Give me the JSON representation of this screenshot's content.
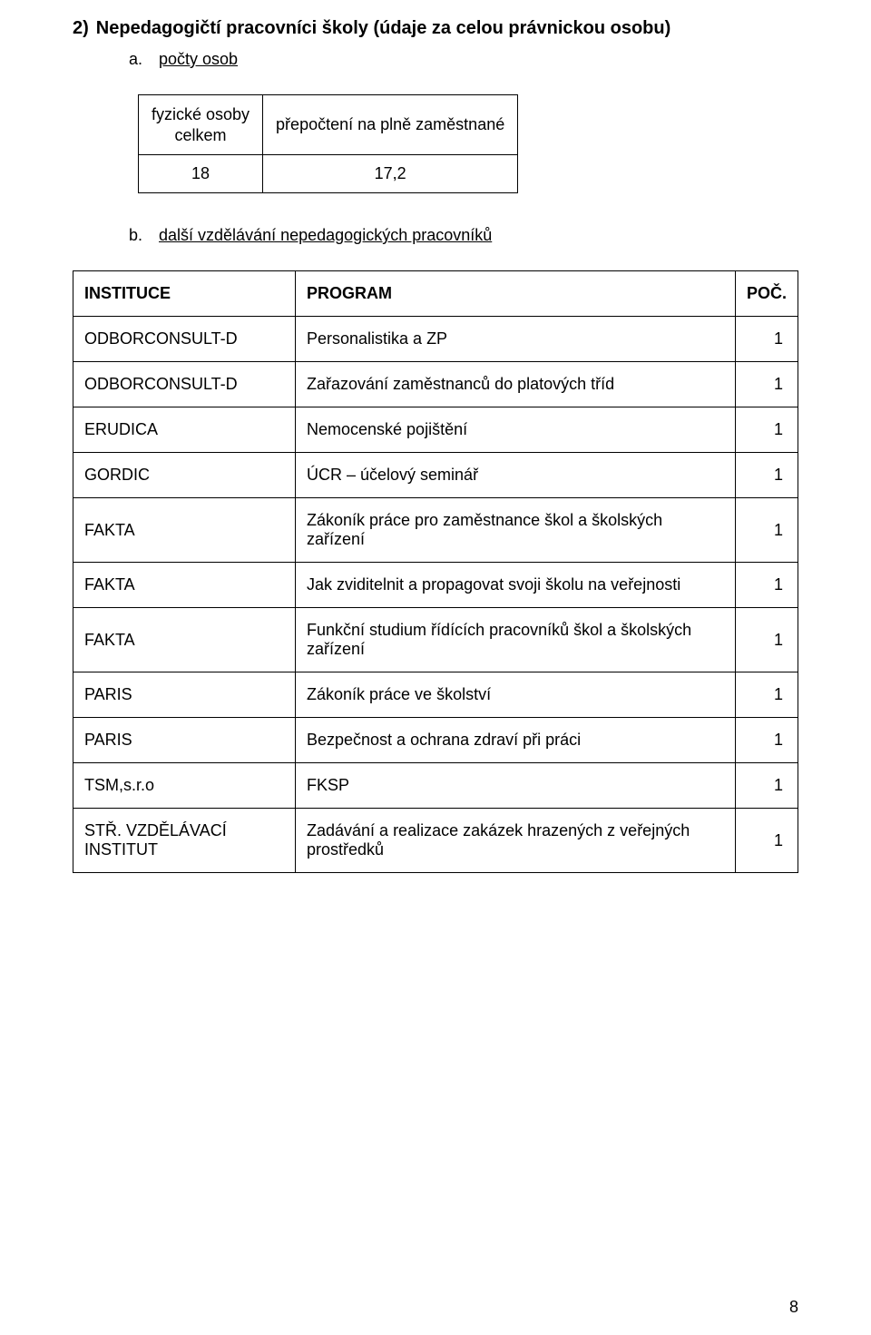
{
  "section": {
    "number": "2)",
    "title": "Nepedagogičtí pracovníci školy (údaje za celou právnickou osobu)"
  },
  "sub_a": {
    "marker": "a.",
    "label": "počty osob"
  },
  "counts_table": {
    "col1_header_line1": "fyzické osoby",
    "col1_header_line2": "celkem",
    "col2_header": "přepočtení na plně zaměstnané",
    "col1_value": "18",
    "col2_value": "17,2"
  },
  "sub_b": {
    "marker": "b.",
    "label": "další vzdělávání nepedagogických pracovníků"
  },
  "training_table": {
    "headers": {
      "institution": "INSTITUCE",
      "program": "PROGRAM",
      "count": "POČ."
    },
    "rows": [
      {
        "institution": "ODBORCONSULT-D",
        "program": "Personalistika a ZP",
        "count": "1"
      },
      {
        "institution": "ODBORCONSULT-D",
        "program": "Zařazování zaměstnanců do platových tříd",
        "count": "1"
      },
      {
        "institution": "ERUDICA",
        "program": "Nemocenské pojištění",
        "count": "1"
      },
      {
        "institution": "GORDIC",
        "program": "ÚCR – účelový seminář",
        "count": "1"
      },
      {
        "institution": "FAKTA",
        "program": "Zákoník práce pro zaměstnance škol a školských zařízení",
        "count": "1"
      },
      {
        "institution": "FAKTA",
        "program": "Jak zviditelnit a propagovat svoji školu na veřejnosti",
        "count": "1"
      },
      {
        "institution": "FAKTA",
        "program": "Funkční studium řídících pracovníků škol a školských zařízení",
        "count": "1"
      },
      {
        "institution": "PARIS",
        "program": "Zákoník práce ve školství",
        "count": "1"
      },
      {
        "institution": "PARIS",
        "program": "Bezpečnost a ochrana zdraví při práci",
        "count": "1"
      },
      {
        "institution": "TSM,s.r.o",
        "program": "FKSP",
        "count": "1"
      },
      {
        "institution": "STŘ. VZDĚLÁVACÍ INSTITUT",
        "program": "Zadávání a realizace zakázek hrazených z veřejných prostředků",
        "count": "1"
      }
    ]
  },
  "page_number": "8"
}
